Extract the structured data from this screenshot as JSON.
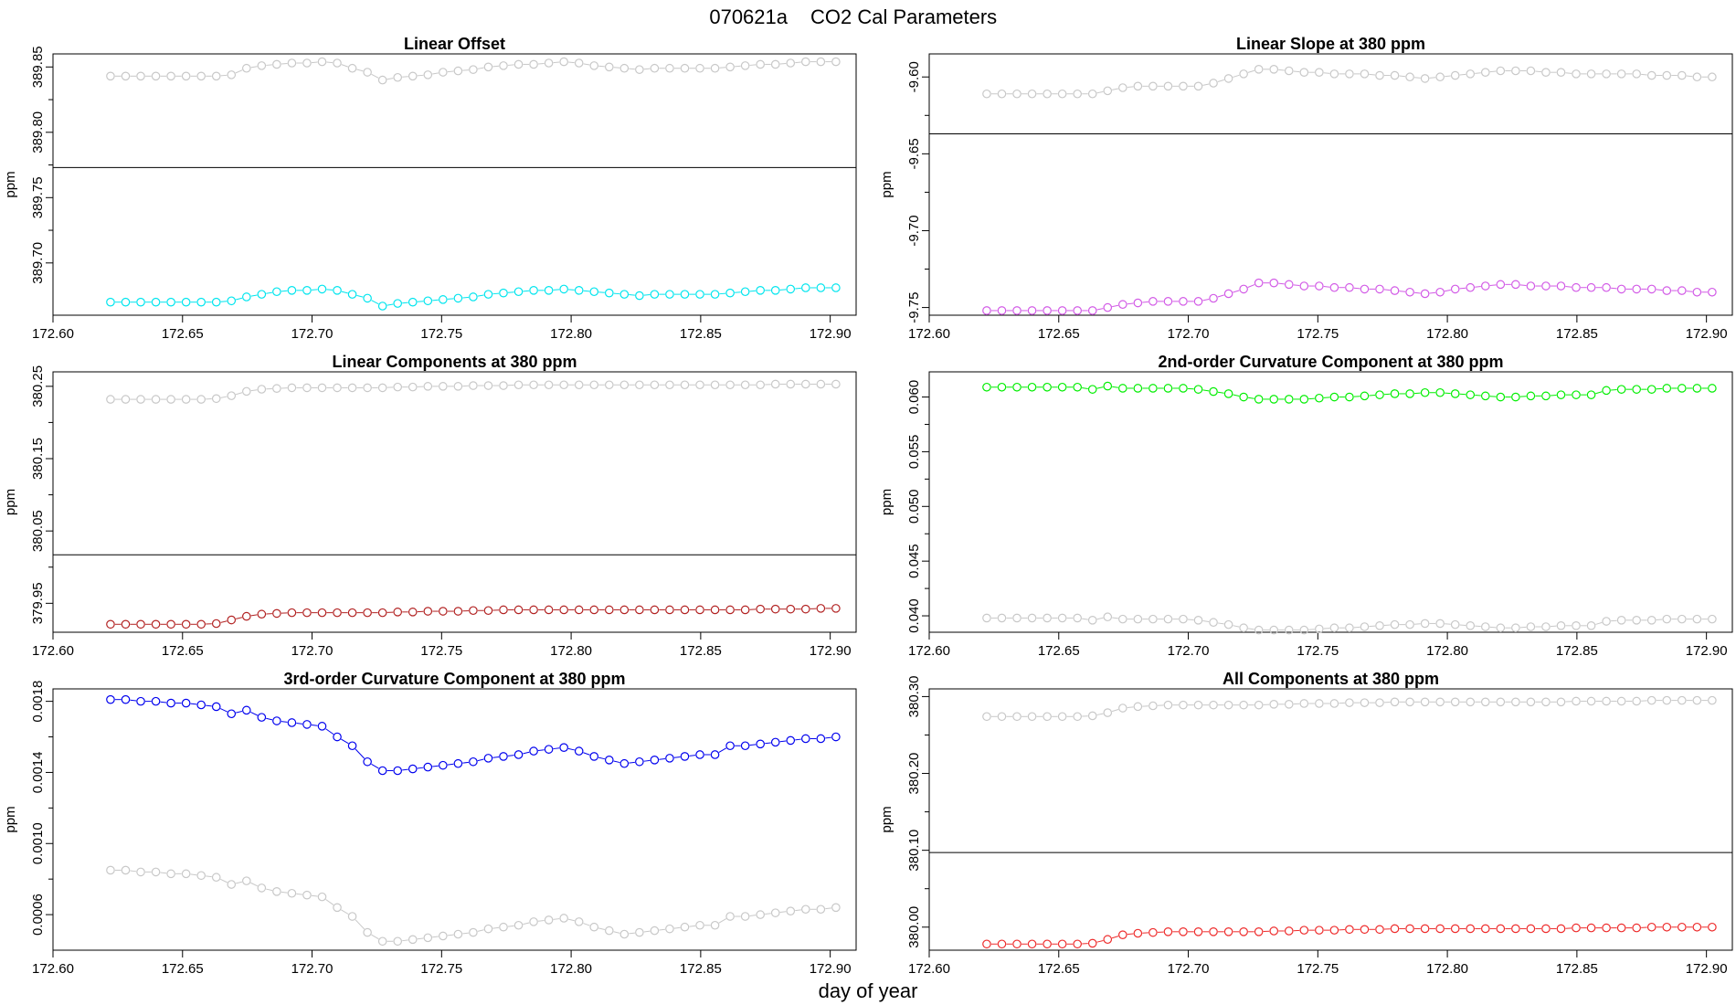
{
  "figure": {
    "run_id": "070621a",
    "title": "CO2 Cal Parameters",
    "xlabel": "day of year"
  },
  "chart_data": [
    {
      "type": "scatter",
      "title": "Linear Offset",
      "ylabel": "ppm",
      "xlim": [
        172.6,
        172.91
      ],
      "ylim": [
        389.66,
        389.86
      ],
      "xticks": [
        "172.60",
        "172.65",
        "172.70",
        "172.75",
        "172.80",
        "172.85",
        "172.90"
      ],
      "xtick_values": [
        172.6,
        172.65,
        172.7,
        172.75,
        172.8,
        172.85,
        172.9
      ],
      "yticks": [
        "389.70",
        "389.75",
        "389.80",
        "389.85"
      ],
      "ytick_values": [
        389.7,
        389.75,
        389.8,
        389.85
      ],
      "hline": 389.773,
      "series": [
        {
          "color": "#c8c8c8",
          "connected": true,
          "values": [
            389.843,
            389.843,
            389.843,
            389.843,
            389.843,
            389.843,
            389.843,
            389.843,
            389.844,
            389.849,
            389.851,
            389.852,
            389.853,
            389.853,
            389.854,
            389.853,
            389.849,
            389.846,
            389.84,
            389.842,
            389.843,
            389.844,
            389.846,
            389.847,
            389.848,
            389.85,
            389.851,
            389.852,
            389.852,
            389.853,
            389.854,
            389.853,
            389.851,
            389.85,
            389.849,
            389.848,
            389.849,
            389.849,
            389.849,
            389.849,
            389.849,
            389.85,
            389.851,
            389.852,
            389.852,
            389.853,
            389.854,
            389.854,
            389.854
          ]
        },
        {
          "color": "#00e5ee",
          "connected": true,
          "values": [
            389.67,
            389.67,
            389.67,
            389.67,
            389.67,
            389.67,
            389.67,
            389.67,
            389.671,
            389.674,
            389.676,
            389.678,
            389.679,
            389.679,
            389.68,
            389.679,
            389.676,
            389.673,
            389.667,
            389.669,
            389.67,
            389.671,
            389.672,
            389.673,
            389.674,
            389.676,
            389.677,
            389.678,
            389.679,
            389.679,
            389.68,
            389.679,
            389.678,
            389.677,
            389.676,
            389.675,
            389.676,
            389.676,
            389.676,
            389.676,
            389.676,
            389.677,
            389.678,
            389.679,
            389.679,
            389.68,
            389.681,
            389.681,
            389.681
          ]
        }
      ]
    },
    {
      "type": "scatter",
      "title": "Linear Slope at 380 ppm",
      "ylabel": "ppm",
      "xlim": [
        172.6,
        172.91
      ],
      "ylim": [
        -9.755,
        -9.585
      ],
      "xticks": [
        "172.60",
        "172.65",
        "172.70",
        "172.75",
        "172.80",
        "172.85",
        "172.90"
      ],
      "xtick_values": [
        172.6,
        172.65,
        172.7,
        172.75,
        172.8,
        172.85,
        172.9
      ],
      "yticks": [
        "-9.75",
        "-9.70",
        "-9.65",
        "-9.60"
      ],
      "ytick_values": [
        -9.75,
        -9.7,
        -9.65,
        -9.6
      ],
      "hline": -9.637,
      "series": [
        {
          "color": "#c8c8c8",
          "connected": true,
          "values": [
            -9.611,
            -9.611,
            -9.611,
            -9.611,
            -9.611,
            -9.611,
            -9.611,
            -9.611,
            -9.609,
            -9.607,
            -9.606,
            -9.606,
            -9.606,
            -9.606,
            -9.606,
            -9.604,
            -9.601,
            -9.598,
            -9.595,
            -9.595,
            -9.596,
            -9.597,
            -9.597,
            -9.598,
            -9.598,
            -9.598,
            -9.599,
            -9.599,
            -9.6,
            -9.601,
            -9.6,
            -9.599,
            -9.598,
            -9.597,
            -9.596,
            -9.596,
            -9.596,
            -9.597,
            -9.597,
            -9.598,
            -9.598,
            -9.598,
            -9.598,
            -9.598,
            -9.599,
            -9.599,
            -9.599,
            -9.6,
            -9.6
          ]
        },
        {
          "color": "#d25ae6",
          "connected": true,
          "values": [
            -9.752,
            -9.752,
            -9.752,
            -9.752,
            -9.752,
            -9.752,
            -9.752,
            -9.752,
            -9.75,
            -9.748,
            -9.747,
            -9.746,
            -9.746,
            -9.746,
            -9.746,
            -9.744,
            -9.741,
            -9.738,
            -9.734,
            -9.734,
            -9.735,
            -9.736,
            -9.736,
            -9.737,
            -9.737,
            -9.738,
            -9.738,
            -9.739,
            -9.74,
            -9.741,
            -9.74,
            -9.738,
            -9.737,
            -9.736,
            -9.735,
            -9.735,
            -9.736,
            -9.736,
            -9.736,
            -9.737,
            -9.737,
            -9.737,
            -9.738,
            -9.738,
            -9.738,
            -9.739,
            -9.739,
            -9.74,
            -9.74
          ]
        }
      ]
    },
    {
      "type": "scatter",
      "title": "Linear Components at 380 ppm",
      "ylabel": "ppm",
      "xlim": [
        172.6,
        172.91
      ],
      "ylim": [
        379.91,
        380.27
      ],
      "xticks": [
        "172.60",
        "172.65",
        "172.70",
        "172.75",
        "172.80",
        "172.85",
        "172.90"
      ],
      "xtick_values": [
        172.6,
        172.65,
        172.7,
        172.75,
        172.8,
        172.85,
        172.9
      ],
      "yticks": [
        "379.95",
        "380.05",
        "380.15",
        "380.25"
      ],
      "ytick_values": [
        379.95,
        380.05,
        380.15,
        380.25
      ],
      "hline": 380.017,
      "series": [
        {
          "color": "#c8c8c8",
          "connected": true,
          "values": [
            380.232,
            380.232,
            380.232,
            380.232,
            380.232,
            380.232,
            380.232,
            380.233,
            380.237,
            380.243,
            380.246,
            380.247,
            380.248,
            380.248,
            380.248,
            380.248,
            380.248,
            380.248,
            380.248,
            380.249,
            380.249,
            380.25,
            380.25,
            380.25,
            380.251,
            380.251,
            380.251,
            380.252,
            380.252,
            380.252,
            380.252,
            380.252,
            380.252,
            380.252,
            380.252,
            380.252,
            380.252,
            380.252,
            380.252,
            380.252,
            380.252,
            380.252,
            380.252,
            380.252,
            380.253,
            380.253,
            380.253,
            380.253,
            380.253
          ]
        },
        {
          "color": "#b22222",
          "connected": true,
          "values": [
            379.921,
            379.921,
            379.921,
            379.921,
            379.921,
            379.921,
            379.921,
            379.922,
            379.927,
            379.932,
            379.935,
            379.936,
            379.937,
            379.937,
            379.937,
            379.937,
            379.937,
            379.937,
            379.937,
            379.938,
            379.938,
            379.939,
            379.939,
            379.939,
            379.94,
            379.94,
            379.941,
            379.941,
            379.941,
            379.941,
            379.941,
            379.941,
            379.941,
            379.941,
            379.941,
            379.941,
            379.941,
            379.941,
            379.941,
            379.941,
            379.941,
            379.941,
            379.941,
            379.942,
            379.942,
            379.942,
            379.942,
            379.943,
            379.943
          ]
        }
      ]
    },
    {
      "type": "scatter",
      "title": "2nd-order Curvature Component at 380 ppm",
      "ylabel": "ppm",
      "xlim": [
        172.6,
        172.91
      ],
      "ylim": [
        0.0385,
        0.0623
      ],
      "xticks": [
        "172.60",
        "172.65",
        "172.70",
        "172.75",
        "172.80",
        "172.85",
        "172.90"
      ],
      "xtick_values": [
        172.6,
        172.65,
        172.7,
        172.75,
        172.8,
        172.85,
        172.9
      ],
      "yticks": [
        "0.040",
        "0.045",
        "0.050",
        "0.055",
        "0.060"
      ],
      "ytick_values": [
        0.04,
        0.045,
        0.05,
        0.055,
        0.06
      ],
      "series": [
        {
          "color": "#00ee00",
          "connected": true,
          "values": [
            0.0609,
            0.0609,
            0.0609,
            0.0609,
            0.0609,
            0.0609,
            0.0609,
            0.0607,
            0.061,
            0.0608,
            0.0608,
            0.0608,
            0.0608,
            0.0608,
            0.0607,
            0.0605,
            0.0603,
            0.06,
            0.0598,
            0.0598,
            0.0598,
            0.0598,
            0.0599,
            0.06,
            0.06,
            0.0601,
            0.0602,
            0.0603,
            0.0603,
            0.0604,
            0.0604,
            0.0603,
            0.0602,
            0.0601,
            0.06,
            0.06,
            0.0601,
            0.0601,
            0.0602,
            0.0602,
            0.0602,
            0.0606,
            0.0607,
            0.0607,
            0.0607,
            0.0608,
            0.0608,
            0.0608,
            0.0608
          ]
        },
        {
          "color": "#c8c8c8",
          "connected": true,
          "values": [
            0.0398,
            0.0398,
            0.0398,
            0.0398,
            0.0398,
            0.0398,
            0.0398,
            0.0396,
            0.0399,
            0.0397,
            0.0397,
            0.0397,
            0.0397,
            0.0397,
            0.0396,
            0.0394,
            0.0392,
            0.0389,
            0.0387,
            0.0387,
            0.0387,
            0.0387,
            0.0388,
            0.0389,
            0.0389,
            0.039,
            0.0391,
            0.0392,
            0.0392,
            0.0393,
            0.0393,
            0.0392,
            0.0391,
            0.039,
            0.0389,
            0.0389,
            0.039,
            0.039,
            0.0391,
            0.0391,
            0.0391,
            0.0395,
            0.0396,
            0.0396,
            0.0396,
            0.0397,
            0.0397,
            0.0397,
            0.0397
          ]
        }
      ]
    },
    {
      "type": "scatter",
      "title": "3rd-order Curvature Component at 380 ppm",
      "ylabel": "ppm",
      "xlim": [
        172.6,
        172.91
      ],
      "ylim": [
        0.0004,
        0.00187
      ],
      "xticks": [
        "172.60",
        "172.65",
        "172.70",
        "172.75",
        "172.80",
        "172.85",
        "172.90"
      ],
      "xtick_values": [
        172.6,
        172.65,
        172.7,
        172.75,
        172.8,
        172.85,
        172.9
      ],
      "yticks": [
        "0.0006",
        "0.0010",
        "0.0014",
        "0.0018"
      ],
      "ytick_values": [
        0.0006,
        0.001,
        0.0014,
        0.0018
      ],
      "series": [
        {
          "color": "#0000ee",
          "connected": true,
          "values": [
            0.00181,
            0.00181,
            0.0018,
            0.0018,
            0.00179,
            0.00179,
            0.00178,
            0.00177,
            0.00173,
            0.00175,
            0.00171,
            0.00169,
            0.00168,
            0.00167,
            0.00166,
            0.0016,
            0.00155,
            0.00146,
            0.00141,
            0.00141,
            0.00142,
            0.00143,
            0.00144,
            0.00145,
            0.00146,
            0.00148,
            0.00149,
            0.0015,
            0.00152,
            0.00153,
            0.00154,
            0.00152,
            0.00149,
            0.00147,
            0.00145,
            0.00146,
            0.00147,
            0.00148,
            0.00149,
            0.0015,
            0.0015,
            0.00155,
            0.00155,
            0.00156,
            0.00157,
            0.00158,
            0.00159,
            0.00159,
            0.0016
          ]
        },
        {
          "color": "#c8c8c8",
          "connected": true,
          "values": [
            0.00085,
            0.00085,
            0.00084,
            0.00084,
            0.00083,
            0.00083,
            0.00082,
            0.00081,
            0.00077,
            0.00079,
            0.00075,
            0.00073,
            0.00072,
            0.00071,
            0.0007,
            0.00064,
            0.00059,
            0.0005,
            0.00045,
            0.00045,
            0.00046,
            0.00047,
            0.00048,
            0.00049,
            0.0005,
            0.00052,
            0.00053,
            0.00054,
            0.00056,
            0.00057,
            0.00058,
            0.00056,
            0.00053,
            0.00051,
            0.00049,
            0.0005,
            0.00051,
            0.00052,
            0.00053,
            0.00054,
            0.00054,
            0.00059,
            0.00059,
            0.0006,
            0.00061,
            0.00062,
            0.00063,
            0.00063,
            0.00064
          ]
        }
      ]
    },
    {
      "type": "scatter",
      "title": "All Components at 380 ppm",
      "ylabel": "ppm",
      "xlim": [
        172.6,
        172.91
      ],
      "ylim": [
        379.97,
        380.31
      ],
      "xticks": [
        "172.60",
        "172.65",
        "172.70",
        "172.75",
        "172.80",
        "172.85",
        "172.90"
      ],
      "xtick_values": [
        172.6,
        172.65,
        172.7,
        172.75,
        172.8,
        172.85,
        172.9
      ],
      "yticks": [
        "380.00",
        "380.10",
        "380.20",
        "380.30"
      ],
      "ytick_values": [
        380.0,
        380.1,
        380.2,
        380.3
      ],
      "hline": 380.097,
      "series": [
        {
          "color": "#c8c8c8",
          "connected": true,
          "values": [
            380.274,
            380.274,
            380.274,
            380.274,
            380.274,
            380.274,
            380.274,
            380.275,
            380.279,
            380.285,
            380.287,
            380.288,
            380.289,
            380.289,
            380.289,
            380.289,
            380.289,
            380.289,
            380.289,
            380.29,
            380.29,
            380.291,
            380.291,
            380.291,
            380.292,
            380.292,
            380.292,
            380.293,
            380.293,
            380.293,
            380.293,
            380.293,
            380.293,
            380.293,
            380.293,
            380.293,
            380.293,
            380.293,
            380.293,
            380.294,
            380.294,
            380.294,
            380.294,
            380.294,
            380.295,
            380.295,
            380.295,
            380.295,
            380.295
          ]
        },
        {
          "color": "#ee2c2c",
          "connected": true,
          "values": [
            379.978,
            379.978,
            379.978,
            379.978,
            379.978,
            379.978,
            379.978,
            379.979,
            379.984,
            379.99,
            379.992,
            379.993,
            379.994,
            379.994,
            379.994,
            379.994,
            379.994,
            379.994,
            379.994,
            379.995,
            379.995,
            379.996,
            379.996,
            379.996,
            379.997,
            379.997,
            379.997,
            379.998,
            379.998,
            379.998,
            379.998,
            379.998,
            379.998,
            379.998,
            379.998,
            379.998,
            379.998,
            379.998,
            379.998,
            379.999,
            379.999,
            379.999,
            379.999,
            379.999,
            380.0,
            380.0,
            380.0,
            380.0,
            380.0
          ]
        }
      ]
    }
  ],
  "x_sample_start": 172.6222,
  "x_sample_step": 0.0058333
}
